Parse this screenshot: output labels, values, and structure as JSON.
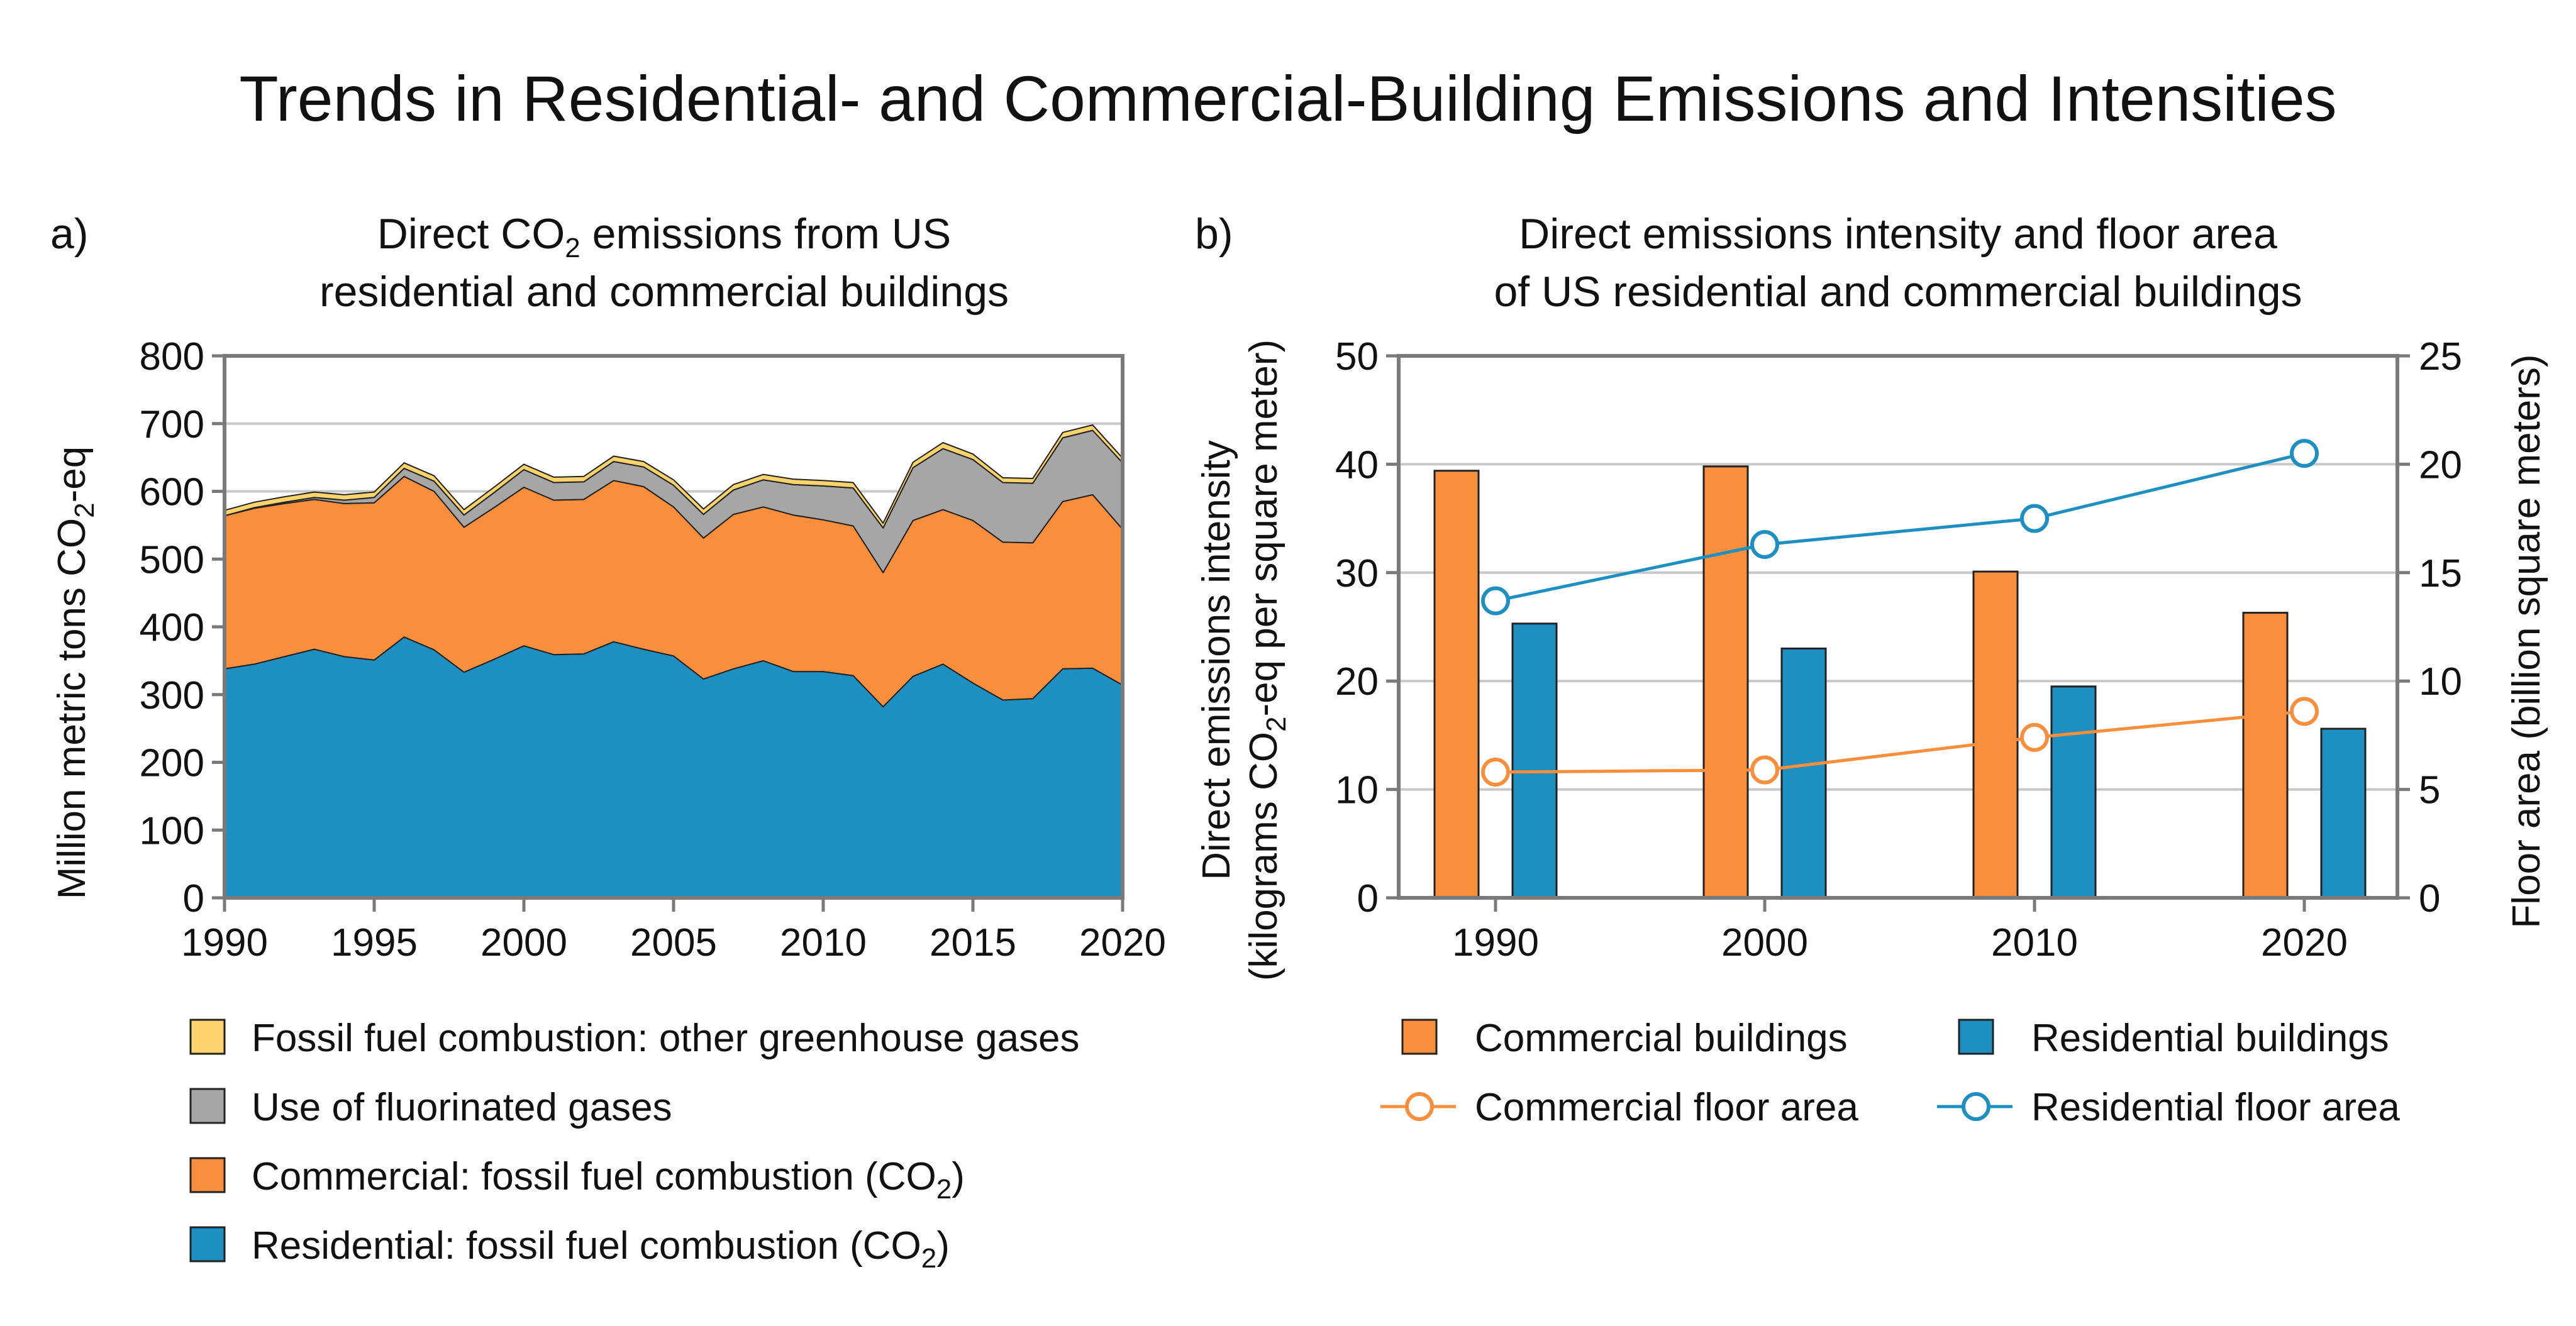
{
  "figure": {
    "title": "Trends in Residential- and Commercial-Building Emissions and Intensities"
  },
  "panel_a": {
    "letter": "a)",
    "title_line1_pre": "Direct CO",
    "title_line1_sub": "2",
    "title_line1_post": " emissions from US",
    "title_line2": "residential and commercial buildings",
    "ylabel_pre": "Million metric tons CO",
    "ylabel_sub": "2",
    "ylabel_post": "-eq",
    "legend": [
      {
        "label_pre": "Fossil fuel combustion: other greenhouse gases",
        "label_sub": "",
        "label_post": "",
        "color": "#FDD46B"
      },
      {
        "label_pre": "Use of fluorinated gases",
        "label_sub": "",
        "label_post": "",
        "color": "#A6A6A6"
      },
      {
        "label_pre": "Commercial: fossil fuel combustion (CO",
        "label_sub": "2",
        "label_post": ")",
        "color": "#F98E3C"
      },
      {
        "label_pre": "Residential: fossil fuel combustion (CO",
        "label_sub": "2",
        "label_post": ")",
        "color": "#1E8FC1"
      }
    ]
  },
  "panel_b": {
    "letter": "b)",
    "title_line1": "Direct emissions intensity and floor area",
    "title_line2": "of US residential and commercial buildings",
    "ylabel_left_line1": "Direct emissions intensity",
    "ylabel_left_line2_pre": "(kilograms CO",
    "ylabel_left_line2_sub": "2",
    "ylabel_left_line2_post": "-eq per square meter)",
    "ylabel_right": "Floor area (billion square meters)",
    "legend": [
      {
        "label": "Commercial buildings",
        "kind": "bar",
        "color": "#F98E3C"
      },
      {
        "label": "Residential buildings",
        "kind": "bar",
        "color": "#1E8FC1"
      },
      {
        "label": "Commercial floor area",
        "kind": "line",
        "color": "#F98E3C"
      },
      {
        "label": "Residential floor area",
        "kind": "line",
        "color": "#1E8FC1"
      }
    ]
  },
  "chart_data": [
    {
      "type": "area",
      "stacked": true,
      "x": [
        1990,
        1991,
        1992,
        1993,
        1994,
        1995,
        1996,
        1997,
        1998,
        1999,
        2000,
        2001,
        2002,
        2003,
        2004,
        2005,
        2006,
        2007,
        2008,
        2009,
        2010,
        2011,
        2012,
        2013,
        2014,
        2015,
        2016,
        2017,
        2018,
        2019,
        2020
      ],
      "xticks": [
        1990,
        1995,
        2000,
        2005,
        2010,
        2015,
        2020
      ],
      "yticks": [
        0,
        100,
        200,
        300,
        400,
        500,
        600,
        700,
        800
      ],
      "xlim": [
        1990,
        2020
      ],
      "ylim": [
        0,
        800
      ],
      "grid": "horizontal",
      "series": [
        {
          "name": "Residential: fossil fuel combustion (CO2)",
          "color": "#1E8FC1",
          "values": [
            338,
            345,
            356,
            367,
            356,
            351,
            385,
            366,
            333,
            352,
            372,
            359,
            360,
            378,
            367,
            357,
            323,
            338,
            350,
            334,
            334,
            328,
            282,
            327,
            345,
            317,
            292,
            294,
            338,
            339,
            314
          ]
        },
        {
          "name": "Commercial: fossil fuel combustion (CO2)",
          "color": "#F98E3C",
          "values": [
            226,
            230,
            226,
            221,
            226,
            232,
            237,
            234,
            214,
            224,
            234,
            228,
            228,
            238,
            240,
            220,
            208,
            228,
            227,
            231,
            224,
            221,
            198,
            230,
            228,
            240,
            233,
            230,
            247,
            256,
            230
          ]
        },
        {
          "name": "Use of fluorinated gases",
          "color": "#A6A6A6",
          "values": [
            0,
            1,
            2,
            3,
            5,
            8,
            12,
            15,
            18,
            22,
            26,
            26,
            26,
            28,
            29,
            32,
            35,
            36,
            40,
            45,
            50,
            56,
            66,
            78,
            90,
            90,
            88,
            88,
            94,
            95,
            98
          ]
        },
        {
          "name": "Fossil fuel combustion: other greenhouse gases",
          "color": "#FDD46B",
          "values": [
            8,
            8,
            8,
            8,
            8,
            8,
            8,
            8,
            8,
            8,
            8,
            8,
            8,
            8,
            8,
            8,
            8,
            8,
            8,
            8,
            8,
            8,
            7,
            8,
            9,
            8,
            7,
            7,
            8,
            8,
            7
          ]
        }
      ]
    },
    {
      "type": "bar",
      "categories": [
        "1990",
        "2000",
        "2010",
        "2020"
      ],
      "yticks_left": [
        0,
        10,
        20,
        30,
        40,
        50
      ],
      "yticks_right": [
        0,
        5,
        10,
        15,
        20,
        25
      ],
      "ylim_left": [
        0,
        50
      ],
      "ylim_right": [
        0,
        25
      ],
      "grid": "horizontal",
      "series": [
        {
          "name": "Commercial buildings",
          "axis": "left",
          "kind": "bar",
          "color": "#F98E3C",
          "values": [
            39.4,
            39.8,
            30.1,
            26.3
          ]
        },
        {
          "name": "Residential buildings",
          "axis": "left",
          "kind": "bar",
          "color": "#1E8FC1",
          "values": [
            25.3,
            23.0,
            19.5,
            15.6
          ]
        },
        {
          "name": "Commercial floor area",
          "axis": "right",
          "kind": "line",
          "color": "#F98E3C",
          "values": [
            5.8,
            5.9,
            7.4,
            8.6
          ]
        },
        {
          "name": "Residential floor area",
          "axis": "right",
          "kind": "line",
          "color": "#1E8FC1",
          "values": [
            13.7,
            16.3,
            17.5,
            20.5
          ]
        }
      ]
    }
  ]
}
